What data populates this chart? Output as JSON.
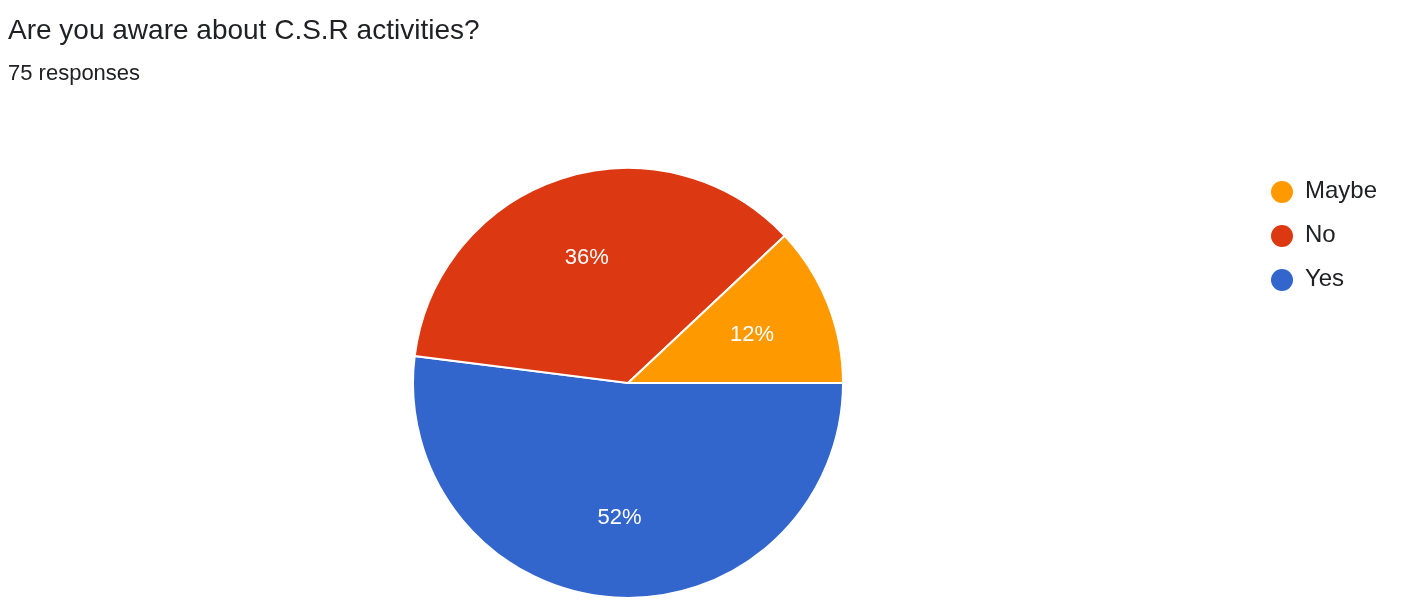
{
  "chart_data": {
    "type": "pie",
    "title": "Are you aware about C.S.R activities?",
    "subtitle": "75 responses",
    "categories": [
      "Yes",
      "No",
      "Maybe"
    ],
    "values": [
      52,
      36,
      12
    ],
    "colors": [
      "#3366cc",
      "#dc3912",
      "#ff9900"
    ],
    "value_labels": [
      "52%",
      "36%",
      "12%"
    ],
    "legend": "top right"
  }
}
